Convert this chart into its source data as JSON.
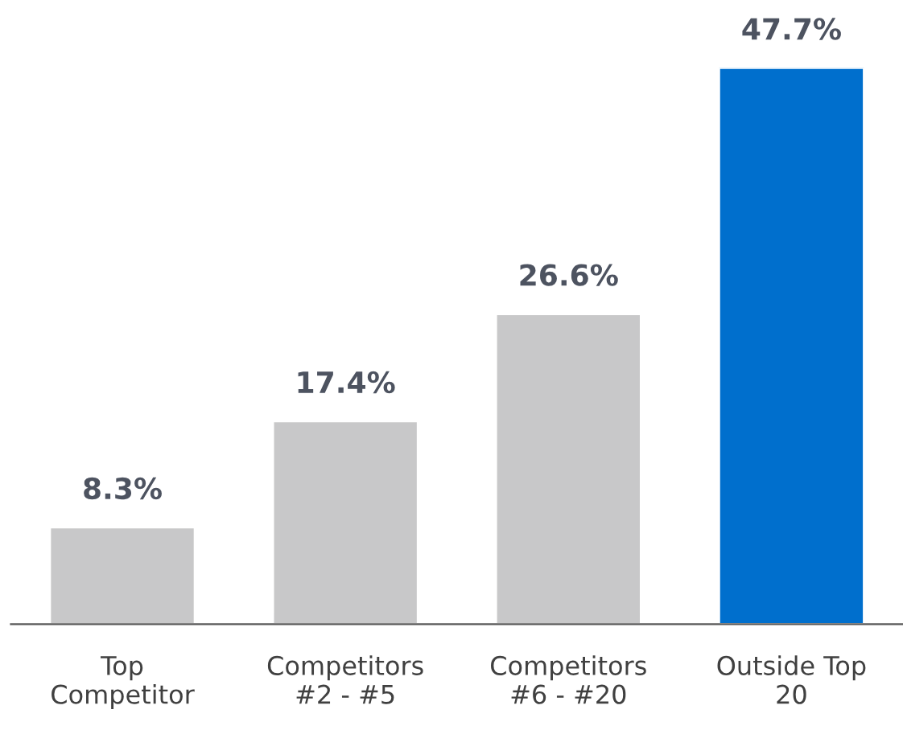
{
  "chart_data": {
    "type": "bar",
    "categories": [
      "Top\nCompetitor",
      "Competitors\n#2 - #5",
      "Competitors\n#6 - #20",
      "Outside Top\n20"
    ],
    "values": [
      8.3,
      17.4,
      26.6,
      47.7
    ],
    "colors": [
      "#c8c8c9",
      "#c8c8c9",
      "#c8c8c9",
      "#006fcd"
    ],
    "value_labels": [
      "8.3%",
      "17.4%",
      "26.6%",
      "47.7%"
    ],
    "grid": false,
    "legend": false
  }
}
